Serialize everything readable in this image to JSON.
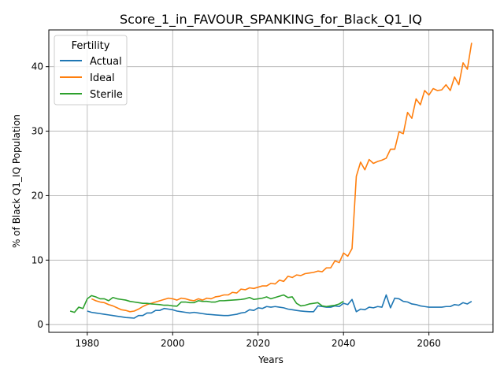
{
  "chart_data": {
    "type": "line",
    "title": "Score_1_in_FAVOUR_SPANKING_for_Black_Q1_IQ",
    "xlabel": "Years",
    "ylabel": "% of Black Q1_IQ Population",
    "xlim": [
      1971,
      2075
    ],
    "ylim": [
      -1.2,
      45.7
    ],
    "x_ticks": [
      1980,
      2000,
      2020,
      2040,
      2060
    ],
    "y_ticks": [
      0,
      10,
      20,
      30,
      40
    ],
    "grid": true,
    "legend": {
      "title": "Fertility",
      "placement": "top-left"
    },
    "colors": {
      "Actual": "#1f77b4",
      "Ideal": "#ff7f0e",
      "Sterile": "#2ca02c"
    },
    "series": [
      {
        "name": "Actual",
        "x": [
          1980,
          1981,
          1982,
          1983,
          1984,
          1985,
          1986,
          1987,
          1988,
          1989,
          1990,
          1991,
          1992,
          1993,
          1994,
          1995,
          1996,
          1997,
          1998,
          1999,
          2000,
          2001,
          2002,
          2003,
          2004,
          2005,
          2006,
          2007,
          2008,
          2009,
          2010,
          2011,
          2012,
          2013,
          2014,
          2015,
          2016,
          2017,
          2018,
          2019,
          2020,
          2021,
          2022,
          2023,
          2024,
          2025,
          2026,
          2027,
          2028,
          2029,
          2030,
          2031,
          2032,
          2033,
          2034,
          2035,
          2036,
          2037,
          2038,
          2039,
          2040,
          2041,
          2042,
          2043,
          2044,
          2045,
          2046,
          2047,
          2048,
          2049,
          2050,
          2051,
          2052,
          2053,
          2054,
          2055,
          2056,
          2057,
          2058,
          2059,
          2060,
          2061,
          2062,
          2063,
          2064,
          2065,
          2066,
          2067,
          2068,
          2069,
          2070
        ],
        "values": [
          2.1,
          1.9,
          1.8,
          1.7,
          1.6,
          1.5,
          1.4,
          1.3,
          1.2,
          1.1,
          1.05,
          1.0,
          1.4,
          1.4,
          1.8,
          1.8,
          2.2,
          2.2,
          2.5,
          2.4,
          2.3,
          2.1,
          2.0,
          1.9,
          1.8,
          1.9,
          1.8,
          1.7,
          1.6,
          1.55,
          1.5,
          1.45,
          1.4,
          1.4,
          1.5,
          1.6,
          1.8,
          1.9,
          2.3,
          2.2,
          2.6,
          2.5,
          2.8,
          2.7,
          2.8,
          2.7,
          2.6,
          2.4,
          2.3,
          2.2,
          2.1,
          2.05,
          2.0,
          2.0,
          2.9,
          2.8,
          2.7,
          2.7,
          2.9,
          2.8,
          3.3,
          3.1,
          3.9,
          2.0,
          2.4,
          2.3,
          2.7,
          2.6,
          2.8,
          2.7,
          4.6,
          2.6,
          4.1,
          4.0,
          3.6,
          3.5,
          3.2,
          3.1,
          2.9,
          2.8,
          2.7,
          2.7,
          2.7,
          2.7,
          2.8,
          2.8,
          3.1,
          3.0,
          3.4,
          3.2,
          3.6
        ]
      },
      {
        "name": "Ideal",
        "x": [
          1981,
          1982,
          1983,
          1984,
          1985,
          1986,
          1987,
          1988,
          1989,
          1990,
          1991,
          1992,
          1993,
          1994,
          1995,
          1996,
          1997,
          1998,
          1999,
          2000,
          2001,
          2002,
          2003,
          2004,
          2005,
          2006,
          2007,
          2008,
          2009,
          2010,
          2011,
          2012,
          2013,
          2014,
          2015,
          2016,
          2017,
          2018,
          2019,
          2020,
          2021,
          2022,
          2023,
          2024,
          2025,
          2026,
          2027,
          2028,
          2029,
          2030,
          2031,
          2032,
          2033,
          2034,
          2035,
          2036,
          2037,
          2038,
          2039,
          2040,
          2041,
          2042,
          2043,
          2044,
          2045,
          2046,
          2047,
          2048,
          2049,
          2050,
          2051,
          2052,
          2053,
          2054,
          2055,
          2056,
          2057,
          2058,
          2059,
          2060,
          2061,
          2062,
          2063,
          2064,
          2065,
          2066,
          2067,
          2068,
          2069,
          2070
        ],
        "values": [
          4.0,
          3.7,
          3.5,
          3.4,
          3.1,
          2.9,
          2.6,
          2.3,
          2.2,
          2.0,
          2.1,
          2.4,
          2.8,
          3.1,
          3.3,
          3.5,
          3.7,
          3.9,
          4.1,
          4.0,
          3.8,
          4.1,
          4.0,
          3.8,
          3.7,
          4.0,
          3.8,
          4.1,
          4.0,
          4.3,
          4.4,
          4.6,
          4.6,
          5.0,
          4.9,
          5.5,
          5.4,
          5.7,
          5.6,
          5.8,
          6.0,
          6.0,
          6.4,
          6.3,
          6.9,
          6.7,
          7.5,
          7.3,
          7.7,
          7.6,
          7.9,
          8.0,
          8.1,
          8.3,
          8.2,
          8.8,
          8.8,
          9.9,
          9.6,
          11.1,
          10.6,
          11.8,
          23.0,
          25.2,
          24.0,
          25.6,
          25.0,
          25.3,
          25.5,
          25.8,
          27.2,
          27.2,
          29.9,
          29.6,
          32.9,
          32.0,
          35.0,
          34.1,
          36.3,
          35.6,
          36.6,
          36.3,
          36.4,
          37.2,
          36.3,
          38.4,
          37.2,
          40.6,
          39.6,
          43.7
        ]
      },
      {
        "name": "Sterile",
        "x": [
          1976,
          1977,
          1978,
          1979,
          1980,
          1981,
          1982,
          1983,
          1984,
          1985,
          1986,
          1987,
          1988,
          1989,
          1990,
          1991,
          1992,
          1993,
          1994,
          1995,
          1996,
          1997,
          1998,
          1999,
          2000,
          2001,
          2002,
          2003,
          2004,
          2005,
          2006,
          2007,
          2008,
          2009,
          2010,
          2011,
          2012,
          2013,
          2014,
          2015,
          2016,
          2017,
          2018,
          2019,
          2020,
          2021,
          2022,
          2023,
          2024,
          2025,
          2026,
          2027,
          2028,
          2029,
          2030,
          2031,
          2032,
          2033,
          2034,
          2035,
          2036,
          2037,
          2038,
          2039,
          2040
        ],
        "values": [
          2.1,
          1.9,
          2.7,
          2.5,
          4.0,
          4.5,
          4.3,
          4.0,
          4.0,
          3.7,
          4.2,
          4.0,
          3.9,
          3.8,
          3.6,
          3.5,
          3.4,
          3.3,
          3.3,
          3.2,
          3.15,
          3.1,
          3.0,
          3.0,
          2.9,
          2.85,
          3.5,
          3.5,
          3.4,
          3.4,
          3.7,
          3.6,
          3.6,
          3.5,
          3.5,
          3.7,
          3.7,
          3.75,
          3.8,
          3.85,
          3.9,
          4.0,
          4.2,
          3.9,
          4.0,
          4.1,
          4.3,
          4.0,
          4.2,
          4.4,
          4.6,
          4.2,
          4.3,
          3.3,
          2.9,
          3.0,
          3.2,
          3.3,
          3.4,
          2.9,
          2.8,
          2.9,
          3.0,
          3.2,
          3.6
        ]
      }
    ]
  }
}
